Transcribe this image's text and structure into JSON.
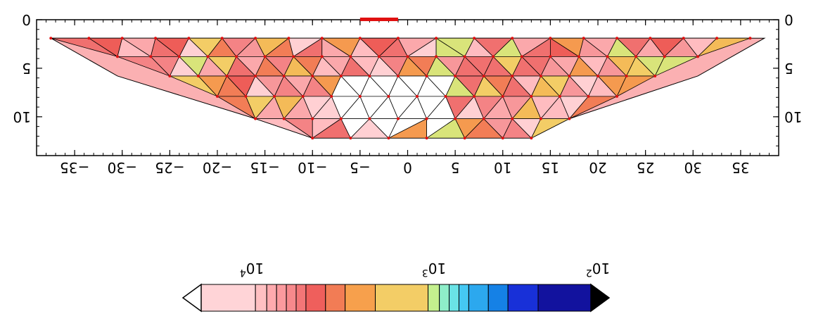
{
  "plot": {
    "x_ticks": [
      35,
      30,
      25,
      20,
      15,
      10,
      5,
      0,
      -5,
      -10,
      -15,
      -20,
      -25,
      -30,
      -35
    ],
    "y_ticks": [
      0,
      5,
      10
    ],
    "x_range": [
      39,
      -39
    ],
    "y_range": [
      0,
      14
    ]
  },
  "colorbar": {
    "labels": [
      {
        "text": "10",
        "exp": "4"
      },
      {
        "text": "10",
        "exp": "3"
      },
      {
        "text": "10",
        "exp": "2"
      }
    ],
    "colors": [
      "#ffd4d7",
      "#ffc0c2",
      "#ffaaae",
      "#fb9a9e",
      "#f7898c",
      "#f37677",
      "#ef5f5c",
      "#f27c55",
      "#f7a04c",
      "#f3cd66",
      "#c4f08e",
      "#8eeec9",
      "#6ae3e6",
      "#45c8f3",
      "#2ca8ee",
      "#1581e6",
      "#1830d8",
      "#12129e",
      "#000000"
    ],
    "over_color": "#000000",
    "under_color": "#ffffff"
  },
  "electrode_span": {
    "x_start": -1,
    "x_end": -5
  }
}
